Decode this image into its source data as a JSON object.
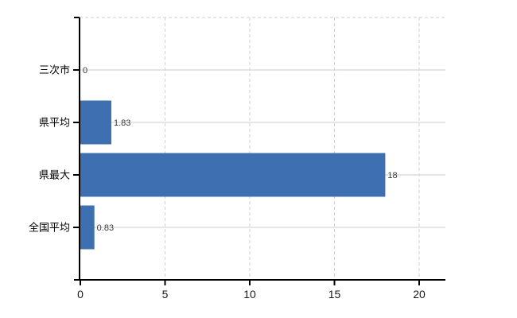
{
  "chart_data": {
    "type": "bar",
    "orientation": "horizontal",
    "title": "",
    "xlabel": "",
    "ylabel": "",
    "categories": [
      "三次市",
      "県平均",
      "県最大",
      "全国平均"
    ],
    "values": [
      0,
      1.83,
      18,
      0.83
    ],
    "value_labels": [
      "0",
      "1.83",
      "18",
      "0.83"
    ],
    "x_ticks": [
      0,
      5,
      10,
      15,
      20
    ],
    "x_tick_labels": [
      "0",
      "5",
      "10",
      "15",
      "20"
    ],
    "xlim": [
      0,
      21.6
    ],
    "grid": true,
    "legend": false,
    "gridline_style": {
      "vertical": "dashed",
      "horizontal": "solid",
      "top_border": "dashed"
    }
  },
  "colors": {
    "background": "#ffffff",
    "bar": "#3e6fb0",
    "axis": "#000000",
    "tick": "#000000",
    "horizontal_grid": "#d2dbd2",
    "vertical_grid": "#d1ced1",
    "top_border": "#d1ced1",
    "category_label_text": "#000000",
    "tick_label_text": "#1a1a1a",
    "value_label_text": "#3a3a3a"
  }
}
